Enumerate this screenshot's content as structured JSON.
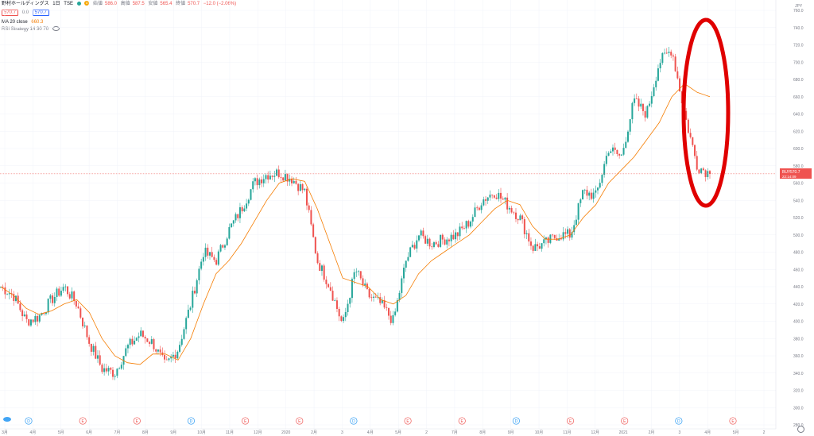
{
  "header": {
    "symbol": "野村ホールディングス",
    "interval": "1日",
    "exchange": "TSE",
    "sell_price": "570.7",
    "spread": "0.0",
    "buy_price": "570.7",
    "ohlc": [
      {
        "label": "始値",
        "value": "586.0"
      },
      {
        "label": "高値",
        "value": "587.5"
      },
      {
        "label": "安値",
        "value": "565.4"
      },
      {
        "label": "終値",
        "value": "570.7"
      }
    ],
    "change": "−12.0 (−2.06%)",
    "ma_label": "MA 20 close",
    "ma_value": "660.3",
    "strategy_label": "RSI Strategy 14 30 70"
  },
  "price_badge": {
    "label": "BUY",
    "value": "570.7",
    "countdown": "22:14:09"
  },
  "currency": "JPY",
  "colors": {
    "up": "#26a69a",
    "down": "#ef5350",
    "ma": "#f57c00",
    "circle": "#e00000",
    "event_blue": "#2196f3",
    "event_red": "#ef5350"
  },
  "chart_data": {
    "type": "candlestick",
    "ylim": [
      270,
      760
    ],
    "y_ticks": [
      280.0,
      300.0,
      320.0,
      340.0,
      360.0,
      380.0,
      400.0,
      420.0,
      440.0,
      460.0,
      480.0,
      500.0,
      520.0,
      540.0,
      560.0,
      580.0,
      600.0,
      620.0,
      640.0,
      660.0,
      680.0,
      700.0,
      720.0,
      740.0,
      760.0
    ],
    "x_ticks": [
      "3月",
      "4月",
      "5月",
      "6月",
      "7月",
      "8月",
      "9月",
      "10月",
      "11月",
      "12月",
      "2020",
      "2月",
      "3",
      "4月",
      "5月",
      "2",
      "7月",
      "8月",
      "9月",
      "10月",
      "11月",
      "12月",
      "2021",
      "2月",
      "3",
      "4月",
      "5月",
      "2"
    ],
    "series_price": [
      440,
      430,
      400,
      405,
      425,
      440,
      420,
      375,
      345,
      340,
      370,
      385,
      375,
      348,
      368,
      420,
      480,
      470,
      505,
      530,
      560,
      570,
      572,
      565,
      550,
      470,
      440,
      395,
      460,
      430,
      420,
      400,
      470,
      500,
      490,
      495,
      500,
      515,
      540,
      550,
      535,
      520,
      485,
      490,
      500,
      500,
      550,
      545,
      600,
      590,
      655,
      640,
      700,
      715,
      640,
      580,
      570.7
    ],
    "series_ma": {
      "name": "MA 20 close",
      "values": [
        440,
        430,
        415,
        408,
        412,
        420,
        425,
        410,
        380,
        360,
        352,
        350,
        362,
        362,
        355,
        380,
        420,
        455,
        470,
        490,
        515,
        540,
        560,
        565,
        562,
        530,
        490,
        450,
        445,
        440,
        425,
        420,
        430,
        455,
        470,
        480,
        490,
        500,
        515,
        530,
        540,
        535,
        510,
        495,
        495,
        500,
        520,
        535,
        560,
        575,
        590,
        610,
        630,
        660,
        675,
        665,
        660
      ]
    },
    "last_value": 570.7,
    "events": [
      {
        "label": "D",
        "color": "blue"
      },
      {
        "label": "E",
        "color": "red"
      },
      {
        "label": "E",
        "color": "red"
      },
      {
        "label": "D",
        "color": "blue"
      },
      {
        "label": "E",
        "color": "red"
      },
      {
        "label": "E",
        "color": "red"
      },
      {
        "label": "D",
        "color": "blue"
      },
      {
        "label": "E",
        "color": "red"
      },
      {
        "label": "E",
        "color": "red"
      },
      {
        "label": "D",
        "color": "blue"
      },
      {
        "label": "E",
        "color": "red"
      },
      {
        "label": "E",
        "color": "red"
      },
      {
        "label": "D",
        "color": "blue"
      },
      {
        "label": "E",
        "color": "red"
      }
    ]
  }
}
